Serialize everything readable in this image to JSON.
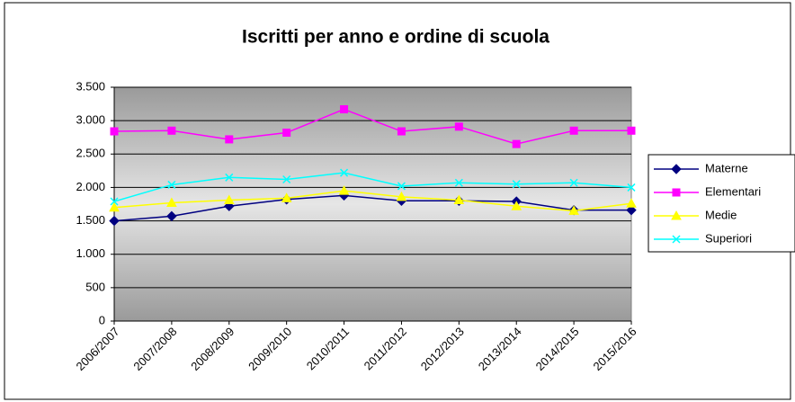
{
  "chart_data": {
    "type": "line",
    "title": "Iscritti per anno e ordine di scuola",
    "categories": [
      "2006/2007",
      "2007/2008",
      "2008/2009",
      "2009/2010",
      "2010/2011",
      "2011/2012",
      "2012/2013",
      "2013/2014",
      "2014/2015",
      "2015/2016"
    ],
    "series": [
      {
        "name": "Materne",
        "color": "#000080",
        "marker": "diamond",
        "values": [
          1500,
          1570,
          1720,
          1820,
          1880,
          1800,
          1800,
          1790,
          1660,
          1660
        ]
      },
      {
        "name": "Elementari",
        "color": "#ff00ff",
        "marker": "square",
        "values": [
          2840,
          2850,
          2720,
          2820,
          3170,
          2840,
          2910,
          2650,
          2850,
          2850
        ]
      },
      {
        "name": "Medie",
        "color": "#ffff00",
        "marker": "triangle",
        "values": [
          1700,
          1770,
          1810,
          1840,
          1950,
          1860,
          1810,
          1720,
          1650,
          1760
        ]
      },
      {
        "name": "Superiori",
        "color": "#00ffff",
        "marker": "cross",
        "values": [
          1790,
          2040,
          2150,
          2120,
          2220,
          2020,
          2070,
          2050,
          2070,
          2000
        ]
      }
    ],
    "ylim": [
      0,
      3500
    ],
    "yticks": [
      0,
      500,
      {
        "value": 1000,
        "label": "1.000"
      },
      {
        "value": 1500,
        "label": "1.500"
      },
      {
        "value": 2000,
        "label": "2.000"
      },
      {
        "value": 2500,
        "label": "2.500"
      },
      {
        "value": 3000,
        "label": "3.000"
      },
      {
        "value": 3500,
        "label": "3.500"
      }
    ],
    "grid": true,
    "legend": "right"
  }
}
